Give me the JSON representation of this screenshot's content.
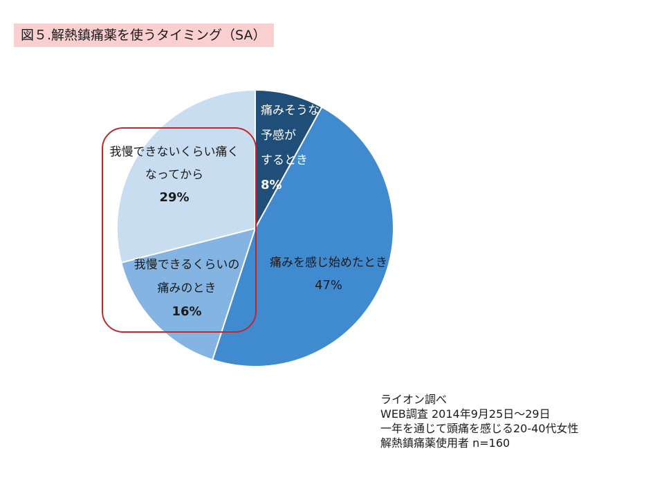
{
  "title": "図５.解熱鎮痛薬を使うタイミング（SA）",
  "chart_data": {
    "type": "pie",
    "slices": [
      {
        "lines": [
          "痛みそうな",
          "予感が",
          "するとき"
        ],
        "value": 8,
        "pct_label": "8%",
        "color": "#1f4e79"
      },
      {
        "lines": [
          "痛みを感じ始めたとき"
        ],
        "value": 47,
        "pct_label": "47%",
        "color": "#408ad0"
      },
      {
        "lines": [
          "我慢できるくらいの",
          "痛みのとき"
        ],
        "value": 16,
        "pct_label": "16%",
        "color": "#84b4e1"
      },
      {
        "lines": [
          "我慢できないくらい痛く",
          "なってから"
        ],
        "value": 29,
        "pct_label": "29%",
        "color": "#c9ddf1"
      }
    ],
    "highlight_color": "#c0272d"
  },
  "source": [
    "ライオン調べ",
    "WEB調査  2014年9月25日～29日",
    "一年を通じて頭痛を感じる20-40代女性",
    "解熱鎮痛薬使用者  n=160"
  ]
}
